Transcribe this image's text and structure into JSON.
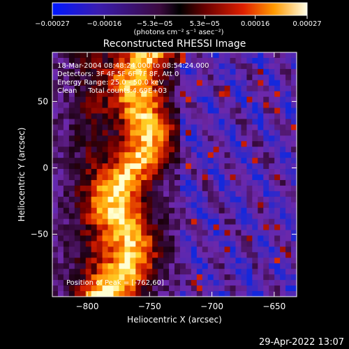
{
  "chart_data": {
    "type": "heatmap",
    "title": "Reconstructed RHESSI Image",
    "xlabel": "Heliocentric X (arcsec)",
    "ylabel": "Heliocentric Y (arcsec)",
    "xlim": [
      -828,
      -632
    ],
    "ylim": [
      -97,
      87
    ],
    "xticks": [
      -800,
      -750,
      -700,
      -650
    ],
    "yticks": [
      -50,
      0,
      50
    ],
    "xtick_labels": [
      "−800",
      "−750",
      "−700",
      "−650"
    ],
    "ytick_labels": [
      "−50",
      "0",
      "50"
    ],
    "colorbar": {
      "range": [
        -0.00027,
        0.00027
      ],
      "ticks": [
        -0.00027,
        -0.00016,
        -5.3e-05,
        5.3e-05,
        0.00016,
        0.00027
      ],
      "tick_labels": [
        "−0.00027",
        "−0.00016",
        "−5.3e−05",
        "5.3e−05",
        "0.00016",
        "0.00027"
      ],
      "unit_label": "(photons cm⁻² s⁻¹ asec⁻²)"
    },
    "annotations": [
      "18-Mar-2004 08:48:24.000 to 08:54:24.000",
      "Detectors: 3F 4F 5F 6F 7F 8F, Att 0",
      "Energy Range: 25.0 - 50.0 keV",
      "Clean     Total counts:4.69E+03"
    ],
    "peak_label": "Position of Peak = [-762,60]",
    "peak": [
      -762,
      60
    ]
  },
  "footer_timestamp": "29-Apr-2022 13:07",
  "colors": {
    "background": "#000000",
    "text": "#ffffff"
  }
}
